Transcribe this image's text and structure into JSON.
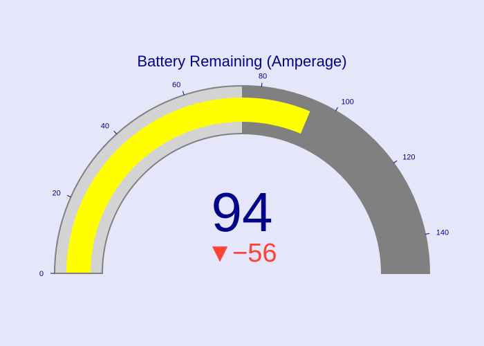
{
  "chart_data": {
    "type": "gauge",
    "title": "Battery Remaining (Amperage)",
    "value": 94,
    "delta": {
      "value": -56,
      "symbol": "▼",
      "text": "−56",
      "reference": 150
    },
    "range": [
      0,
      150
    ],
    "ticks": [
      0,
      20,
      40,
      60,
      80,
      100,
      120,
      140
    ],
    "tick_labels": [
      "0",
      "20",
      "40",
      "60",
      "80",
      "100",
      "120",
      "140"
    ],
    "bar": {
      "value": 94,
      "color": "#ffff00"
    },
    "steps": [
      {
        "range": [
          0,
          75
        ],
        "color": "#d3d3d3"
      },
      {
        "range": [
          75,
          150
        ],
        "color": "#808080"
      }
    ],
    "colors": {
      "background": "#e6e6fa",
      "title": "#00008b",
      "value": "#00008b",
      "delta_decreasing": "#ff4136",
      "tick": "#00008b",
      "border": "#808080"
    }
  }
}
